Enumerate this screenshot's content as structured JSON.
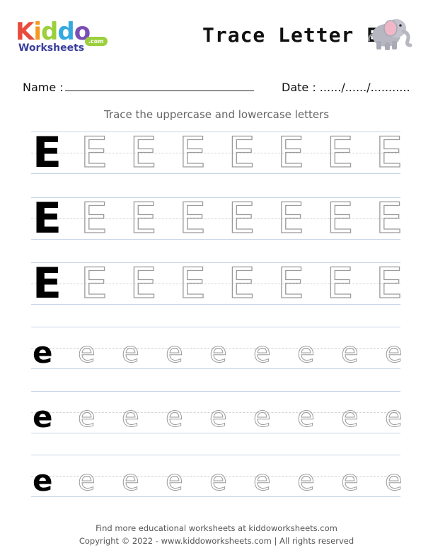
{
  "header": {
    "logo_kiddo": [
      "K",
      "i",
      "d",
      "d",
      "o"
    ],
    "logo_colors": [
      "#e94b3c",
      "#f29a1f",
      "#9bcf3c",
      "#35a9e0",
      "#7a4fb5"
    ],
    "logo_worksheets": "Worksheets",
    "logo_dotcom": ".com",
    "title": "Trace Letter E"
  },
  "form": {
    "name_label": "Name :",
    "date_label": "Date : ....../....../..........."
  },
  "instructions": "Trace the uppercase and lowercase letters",
  "rows": [
    {
      "solid": "E",
      "trace": "E",
      "count": 7
    },
    {
      "solid": "E",
      "trace": "E",
      "count": 7
    },
    {
      "solid": "E",
      "trace": "E",
      "count": 7
    },
    {
      "solid": "e",
      "trace": "e",
      "count": 8
    },
    {
      "solid": "e",
      "trace": "e",
      "count": 8
    },
    {
      "solid": "e",
      "trace": "e",
      "count": 8
    }
  ],
  "footer": {
    "line1": "Find more educational worksheets at kiddoworksheets.com",
    "line2": "Copyright © 2022 - www.kiddoworksheets.com  |  All rights reserved"
  },
  "icons": [
    "elephant-icon",
    "smile-icon"
  ]
}
